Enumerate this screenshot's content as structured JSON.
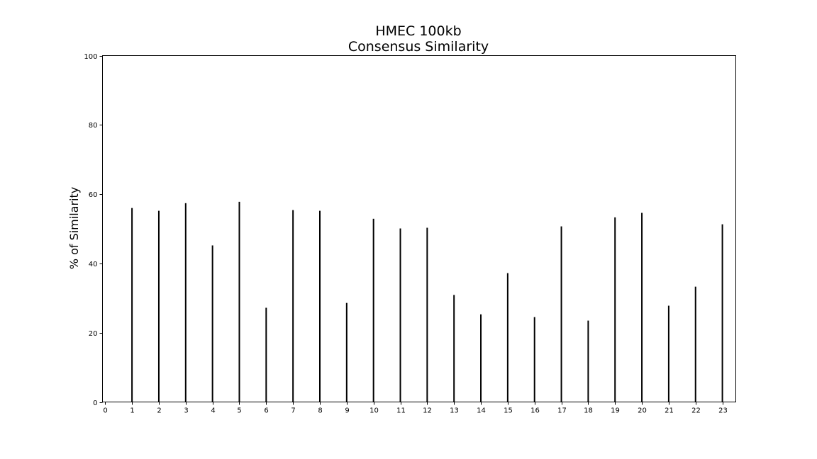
{
  "chart_data": {
    "type": "bar",
    "title_lines": [
      "HMEC 100kb",
      "Consensus Similarity"
    ],
    "xlabel": "",
    "ylabel": "% of Similarity",
    "ylim": [
      0,
      100
    ],
    "xlim": [
      -0.1,
      23.5
    ],
    "y_ticks": [
      0,
      20,
      40,
      60,
      80,
      100
    ],
    "x_ticks": [
      0,
      1,
      2,
      3,
      4,
      5,
      6,
      7,
      8,
      9,
      10,
      11,
      12,
      13,
      14,
      15,
      16,
      17,
      18,
      19,
      20,
      21,
      22,
      23
    ],
    "grid": false,
    "bar_color": "#000000",
    "x": [
      1,
      2,
      3,
      4,
      5,
      6,
      7,
      8,
      9,
      10,
      11,
      12,
      13,
      14,
      15,
      16,
      17,
      18,
      19,
      20,
      21,
      22,
      23
    ],
    "values": [
      56.0,
      55.2,
      57.4,
      45.2,
      57.8,
      27.2,
      55.4,
      55.2,
      28.6,
      52.9,
      50.1,
      50.3,
      30.9,
      25.3,
      37.2,
      24.5,
      50.7,
      23.5,
      53.3,
      54.6,
      27.8,
      33.3,
      51.3
    ]
  }
}
